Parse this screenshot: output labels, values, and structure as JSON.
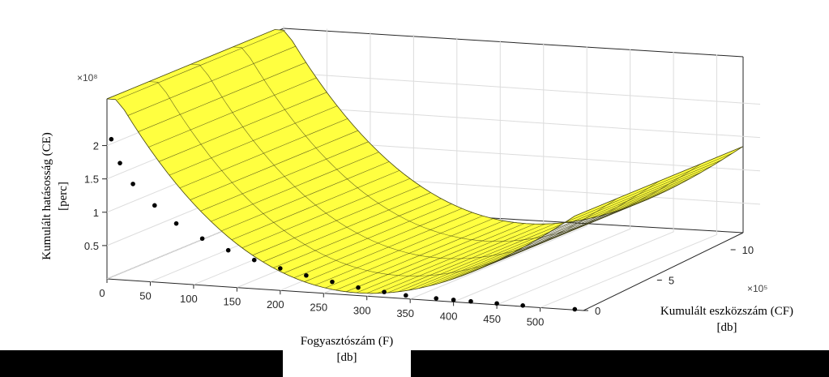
{
  "chart_data": {
    "type": "surface3d",
    "title": "",
    "xlabel": "Fogyasztószám (F)",
    "xlabel_unit": "[db]",
    "ylabel": "Kumulált eszközszám (CF)",
    "ylabel_unit": "[db]",
    "zlabel": "Kumulált hatásosság (CE)",
    "zlabel_unit": "[perc]",
    "x_ticks": [
      "0",
      "50",
      "100",
      "150",
      "200",
      "250",
      "300",
      "350",
      "400",
      "450",
      "500"
    ],
    "y_ticks": [
      "0",
      "5",
      "10"
    ],
    "y_exponent": "×10⁵",
    "z_ticks": [
      "0.5",
      "1",
      "1.5",
      "2"
    ],
    "z_exponent": "×10⁸",
    "xlim": [
      0,
      550
    ],
    "ylim": [
      0,
      1200000
    ],
    "zlim": [
      0,
      270000000
    ],
    "surface_color": "#ffff40",
    "points_color": "#000000",
    "grid": true,
    "observed_points": [
      {
        "x": 5,
        "y": 0,
        "z": 210000000
      },
      {
        "x": 15,
        "y": 0,
        "z": 175000000
      },
      {
        "x": 30,
        "y": 0,
        "z": 145000000
      },
      {
        "x": 55,
        "y": 0,
        "z": 115000000
      },
      {
        "x": 80,
        "y": 0,
        "z": 90000000
      },
      {
        "x": 110,
        "y": 0,
        "z": 70000000
      },
      {
        "x": 140,
        "y": 0,
        "z": 55000000
      },
      {
        "x": 170,
        "y": 0,
        "z": 43000000
      },
      {
        "x": 200,
        "y": 0,
        "z": 33000000
      },
      {
        "x": 230,
        "y": 0,
        "z": 25000000
      },
      {
        "x": 260,
        "y": 0,
        "z": 18000000
      },
      {
        "x": 290,
        "y": 0,
        "z": 12000000
      },
      {
        "x": 320,
        "y": 0,
        "z": 8000000
      },
      {
        "x": 345,
        "y": 0,
        "z": 5000000
      },
      {
        "x": 380,
        "y": 0,
        "z": 3500000
      },
      {
        "x": 400,
        "y": 0,
        "z": 3000000
      },
      {
        "x": 420,
        "y": 0,
        "z": 2500000
      },
      {
        "x": 450,
        "y": 0,
        "z": 2000000
      },
      {
        "x": 480,
        "y": 0,
        "z": 1500000
      },
      {
        "x": 540,
        "y": 0,
        "z": 1000000
      }
    ]
  }
}
